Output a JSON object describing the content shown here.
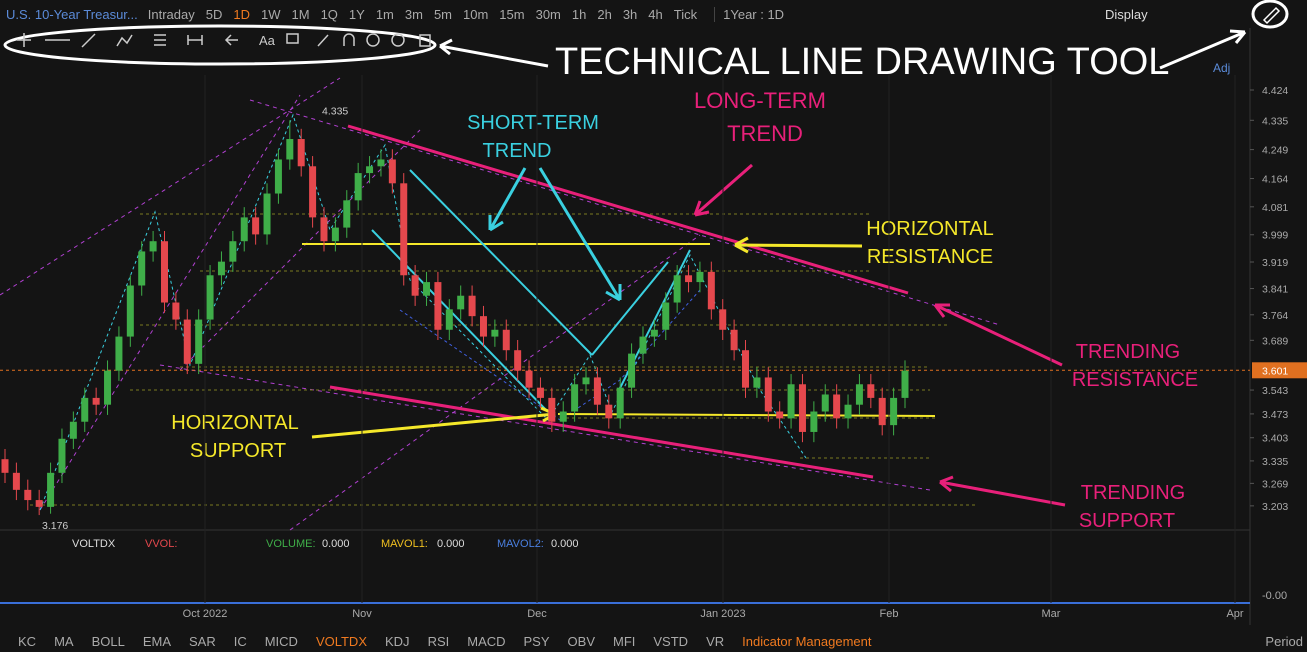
{
  "header": {
    "title": "U.S. 10-Year Treasur...",
    "intervals": [
      "Intraday",
      "5D",
      "1D",
      "1W",
      "1M",
      "1Q",
      "1Y",
      "1m",
      "3m",
      "5m",
      "10m",
      "15m",
      "30m",
      "1h",
      "2h",
      "3h",
      "4h",
      "Tick"
    ],
    "active_interval": 2,
    "range": "1Year : 1D",
    "display": "Display"
  },
  "toolbar": {
    "text_tool": "Aa",
    "callout": "TECHNICAL LINE DRAWING TOOL"
  },
  "adj": "Adj",
  "chart_data": {
    "type": "candlestick",
    "ylim": [
      3.138,
      4.468
    ],
    "yticks": [
      3.203,
      3.269,
      3.335,
      3.403,
      3.473,
      3.543,
      3.689,
      3.764,
      3.841,
      3.919,
      3.999,
      4.081,
      4.164,
      4.249,
      4.335,
      4.424
    ],
    "current_price": 3.601,
    "high_annotation": 4.335,
    "low_annotation": 3.176,
    "date_labels": [
      "Oct 2022",
      "Nov",
      "Dec",
      "Jan 2023",
      "Feb",
      "Mar",
      "Apr"
    ],
    "up_color": "#3fae49",
    "down_color": "#e5484d",
    "open": [
      3.34,
      3.3,
      3.25,
      3.22,
      3.2,
      3.3,
      3.4,
      3.45,
      3.52,
      3.5,
      3.6,
      3.7,
      3.85,
      3.95,
      3.98,
      3.8,
      3.75,
      3.62,
      3.75,
      3.88,
      3.92,
      3.98,
      4.05,
      4.0,
      4.12,
      4.22,
      4.28,
      4.2,
      4.05,
      3.98,
      4.02,
      4.1,
      4.18,
      4.2,
      4.22,
      4.15,
      3.88,
      3.82,
      3.86,
      3.72,
      3.78,
      3.82,
      3.76,
      3.7,
      3.72,
      3.66,
      3.6,
      3.55,
      3.52,
      3.45,
      3.48,
      3.56,
      3.58,
      3.5,
      3.46,
      3.55,
      3.65,
      3.7,
      3.72,
      3.8,
      3.88,
      3.86,
      3.89,
      3.78,
      3.72,
      3.66,
      3.55,
      3.58,
      3.48,
      3.46,
      3.56,
      3.42,
      3.48,
      3.53,
      3.46,
      3.5,
      3.56,
      3.52,
      3.44,
      3.52
    ],
    "high": [
      3.37,
      3.33,
      3.28,
      3.25,
      3.33,
      3.43,
      3.48,
      3.55,
      3.55,
      3.63,
      3.73,
      3.88,
      3.98,
      4.01,
      4.01,
      3.83,
      3.78,
      3.78,
      3.91,
      3.95,
      4.01,
      4.08,
      4.08,
      4.15,
      4.25,
      4.335,
      4.31,
      4.23,
      4.08,
      4.05,
      4.13,
      4.21,
      4.23,
      4.25,
      4.25,
      4.18,
      3.91,
      3.89,
      3.89,
      3.81,
      3.85,
      3.85,
      3.79,
      3.75,
      3.75,
      3.69,
      3.63,
      3.58,
      3.55,
      3.51,
      3.59,
      3.61,
      3.61,
      3.53,
      3.58,
      3.68,
      3.73,
      3.75,
      3.83,
      3.91,
      3.91,
      3.92,
      3.92,
      3.81,
      3.75,
      3.69,
      3.61,
      3.61,
      3.51,
      3.59,
      3.59,
      3.51,
      3.56,
      3.56,
      3.53,
      3.59,
      3.59,
      3.55,
      3.55,
      3.63
    ],
    "low": [
      3.27,
      3.22,
      3.19,
      3.176,
      3.18,
      3.27,
      3.37,
      3.42,
      3.47,
      3.47,
      3.57,
      3.67,
      3.82,
      3.92,
      3.77,
      3.72,
      3.59,
      3.59,
      3.72,
      3.85,
      3.89,
      3.95,
      3.97,
      3.97,
      4.09,
      4.19,
      4.17,
      4.02,
      3.95,
      3.95,
      3.99,
      4.07,
      4.15,
      4.17,
      4.12,
      3.85,
      3.79,
      3.79,
      3.69,
      3.69,
      3.75,
      3.73,
      3.67,
      3.67,
      3.63,
      3.57,
      3.52,
      3.49,
      3.42,
      3.42,
      3.45,
      3.53,
      3.47,
      3.43,
      3.43,
      3.52,
      3.62,
      3.67,
      3.69,
      3.77,
      3.83,
      3.83,
      3.75,
      3.69,
      3.63,
      3.52,
      3.52,
      3.45,
      3.43,
      3.43,
      3.39,
      3.39,
      3.45,
      3.43,
      3.43,
      3.47,
      3.49,
      3.41,
      3.41,
      3.49
    ],
    "close": [
      3.3,
      3.25,
      3.22,
      3.2,
      3.3,
      3.4,
      3.45,
      3.52,
      3.5,
      3.6,
      3.7,
      3.85,
      3.95,
      3.98,
      3.8,
      3.75,
      3.62,
      3.75,
      3.88,
      3.92,
      3.98,
      4.05,
      4.0,
      4.12,
      4.22,
      4.28,
      4.2,
      4.05,
      3.98,
      4.02,
      4.1,
      4.18,
      4.2,
      4.22,
      4.15,
      3.88,
      3.82,
      3.86,
      3.72,
      3.78,
      3.82,
      3.76,
      3.7,
      3.72,
      3.66,
      3.6,
      3.55,
      3.52,
      3.45,
      3.48,
      3.56,
      3.58,
      3.5,
      3.46,
      3.55,
      3.65,
      3.7,
      3.72,
      3.8,
      3.88,
      3.86,
      3.89,
      3.78,
      3.72,
      3.66,
      3.55,
      3.58,
      3.48,
      3.46,
      3.56,
      3.42,
      3.48,
      3.53,
      3.46,
      3.5,
      3.56,
      3.52,
      3.44,
      3.52,
      3.6
    ]
  },
  "annotations": {
    "short_term": [
      "SHORT-TERM",
      "TREND"
    ],
    "long_term": [
      "LONG-TERM",
      "TREND"
    ],
    "horizontal_resistance": [
      "HORIZONTAL",
      "RESISTANCE"
    ],
    "trending_resistance": [
      "TRENDING",
      "RESISTANCE"
    ],
    "horizontal_support": [
      "HORIZONTAL",
      "SUPPORT"
    ],
    "trending_support": [
      "TRENDING",
      "SUPPORT"
    ]
  },
  "indicator": {
    "name": "VOLTDX",
    "vvol": "VVOL:",
    "volume": "VOLUME:",
    "volume_value": "0.000",
    "mavol1": "MAVOL1:",
    "mavol1_value": "0.000",
    "mavol2": "MAVOL2:",
    "mavol2_value": "0.000",
    "axis_label": "-0.00"
  },
  "footer": {
    "tabs": [
      "KC",
      "MA",
      "BOLL",
      "EMA",
      "SAR",
      "IC",
      "MICD",
      "VOLTDX",
      "KDJ",
      "RSI",
      "MACD",
      "PSY",
      "OBV",
      "MFI",
      "VSTD",
      "VR"
    ],
    "active_tab": 7,
    "manage": "Indicator Management",
    "period": "Period"
  }
}
